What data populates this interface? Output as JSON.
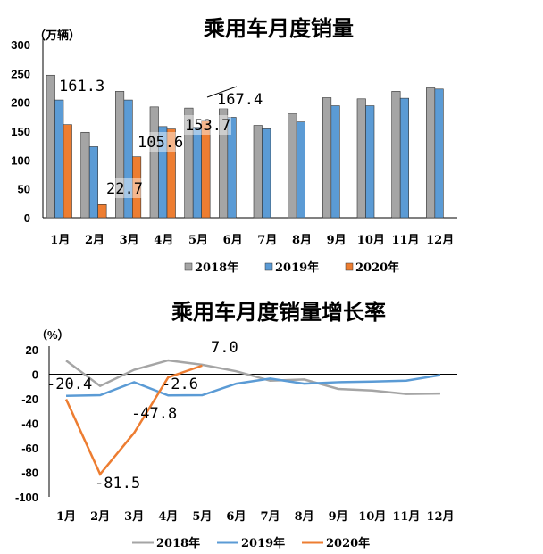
{
  "chart_data": [
    {
      "type": "bar",
      "title": "乘用车月度销量",
      "ylabel": "（万辆）",
      "categories": [
        "1月",
        "2月",
        "3月",
        "4月",
        "5月",
        "6月",
        "7月",
        "8月",
        "9月",
        "10月",
        "11月",
        "12月"
      ],
      "ylim": [
        0,
        300
      ],
      "yticks": [
        0,
        50,
        100,
        150,
        200,
        250,
        300
      ],
      "grid": false,
      "legend_position": "bottom",
      "series": [
        {
          "name": "2018年",
          "color": "#a5a5a5",
          "values": [
            247,
            148,
            219,
            192,
            190,
            189,
            160,
            180,
            208,
            206,
            219,
            225
          ]
        },
        {
          "name": "2019年",
          "color": "#5b9bd5",
          "values": [
            204,
            123,
            204,
            158,
            157,
            174,
            154,
            166,
            194,
            194,
            207,
            223
          ]
        },
        {
          "name": "2020年",
          "color": "#ed7d31",
          "values": [
            161.3,
            22.7,
            105.6,
            153.7,
            167.4,
            null,
            null,
            null,
            null,
            null,
            null,
            null
          ]
        }
      ],
      "data_labels": [
        "161.3",
        "22.7",
        "105.6",
        "153.7",
        "167.4"
      ]
    },
    {
      "type": "line",
      "title": "乘用车月度销量增长率",
      "ylabel": "（%）",
      "categories": [
        "1月",
        "2月",
        "3月",
        "4月",
        "5月",
        "6月",
        "7月",
        "8月",
        "9月",
        "10月",
        "11月",
        "12月"
      ],
      "ylim": [
        -100,
        20
      ],
      "yticks": [
        20,
        0,
        -20,
        -40,
        -60,
        -80,
        -100
      ],
      "grid": false,
      "legend_position": "bottom",
      "series": [
        {
          "name": "2018年",
          "color": "#a5a5a5",
          "values": [
            11.1,
            -9.6,
            3.6,
            11.3,
            7.7,
            2.4,
            -5.3,
            -4.3,
            -12,
            -13.3,
            -16.1,
            -15.7
          ]
        },
        {
          "name": "2019年",
          "color": "#5b9bd5",
          "values": [
            -17.6,
            -17.1,
            -6.5,
            -17.3,
            -17.1,
            -7.7,
            -3.6,
            -7.7,
            -6.5,
            -6,
            -5.3,
            -0.7
          ]
        },
        {
          "name": "2020年",
          "color": "#ed7d31",
          "values": [
            -20.4,
            -81.5,
            -47.8,
            -2.6,
            7.0,
            null,
            null,
            null,
            null,
            null,
            null,
            null
          ]
        }
      ],
      "data_labels": [
        "-20.4",
        "-81.5",
        "-47.8",
        "-2.6",
        "7.0"
      ],
      "label_colors": {
        "negative": "#ff0000",
        "positive": "#000000"
      }
    }
  ]
}
